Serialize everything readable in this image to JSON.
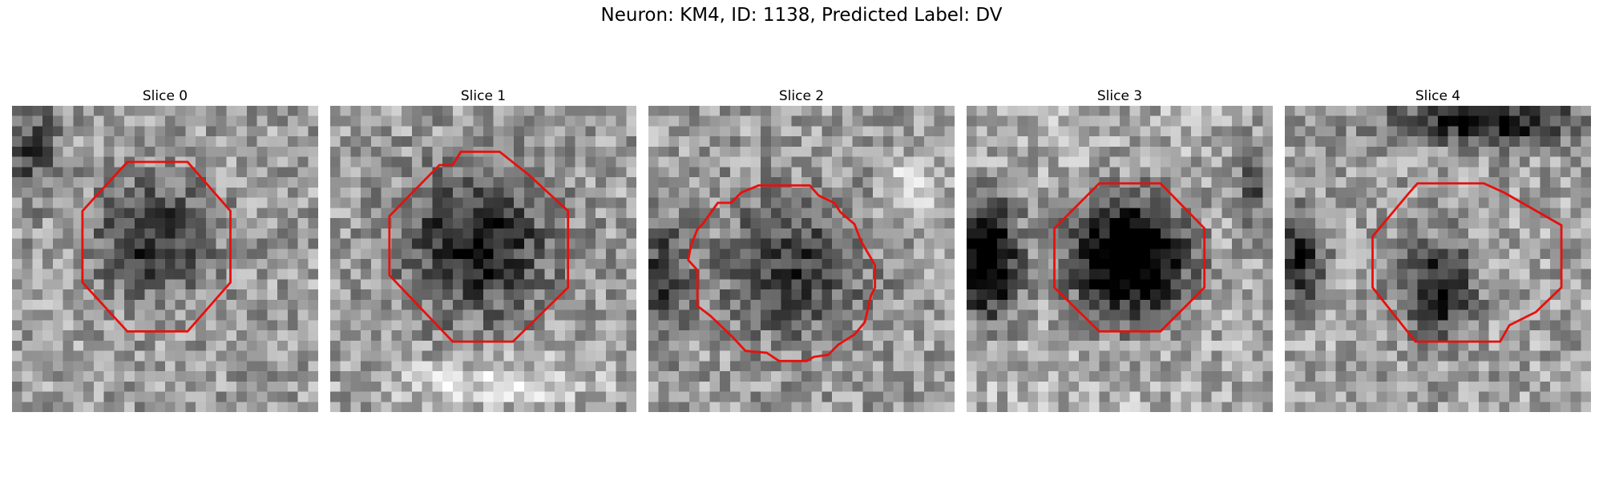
{
  "figure": {
    "title": "Neuron: KM4, ID: 1138, Predicted Label: DV"
  },
  "panels": [
    {
      "title": "Slice 0",
      "seed": 11,
      "contour": "octagon-small",
      "dark_core": 0.55
    },
    {
      "title": "Slice 1",
      "seed": 27,
      "contour": "octagon-large",
      "dark_core": 0.75
    },
    {
      "title": "Slice 2",
      "seed": 43,
      "contour": "irregular",
      "dark_core": 0.6
    },
    {
      "title": "Slice 3",
      "seed": 59,
      "contour": "octagon-medium",
      "dark_core": 1.0
    },
    {
      "title": "Slice 4",
      "seed": 71,
      "contour": "octagon-offset",
      "dark_core": 0.6
    }
  ],
  "style": {
    "contour_color": "#e8100c",
    "colormap": "gray"
  }
}
